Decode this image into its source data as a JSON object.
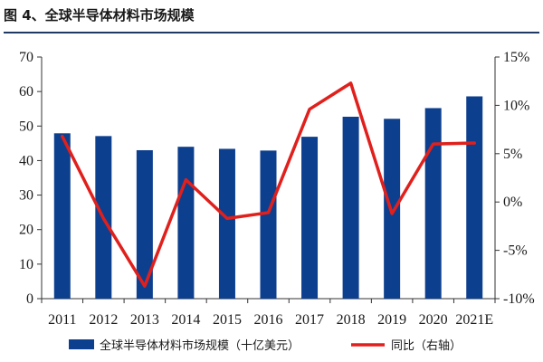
{
  "figure": {
    "title": "图 4、全球半导体材料市场规模"
  },
  "colors": {
    "bar": "#0d3f8f",
    "line": "#e0201c",
    "rule": "#1f3864"
  },
  "chart_data": {
    "type": "bar",
    "title": "图 4、全球半导体材料市场规模",
    "xlabel": "",
    "ylabel": "",
    "categories": [
      "2011",
      "2012",
      "2013",
      "2014",
      "2015",
      "2016",
      "2017",
      "2018",
      "2019",
      "2020",
      "2021E"
    ],
    "series": [
      {
        "name": "全球半导体材料市场规模（十亿美元）",
        "type": "bar",
        "axis": "left",
        "values": [
          47.9,
          47.1,
          43.0,
          44.0,
          43.4,
          42.9,
          46.9,
          52.7,
          52.1,
          55.2,
          58.6
        ]
      },
      {
        "name": "同比（右轴）",
        "type": "line",
        "axis": "right",
        "values": [
          6.8,
          -1.7,
          -8.7,
          2.3,
          -1.7,
          -1.1,
          9.6,
          12.3,
          -1.2,
          6.0,
          6.1
        ]
      }
    ],
    "ylim": [
      0,
      70
    ],
    "yticks": [
      "0",
      "10",
      "20",
      "30",
      "40",
      "50",
      "60",
      "70"
    ],
    "y2lim": [
      -10,
      15
    ],
    "y2ticks": [
      "-10%",
      "-5%",
      "0%",
      "5%",
      "10%",
      "15%"
    ],
    "grid": false,
    "legend": "bottom"
  }
}
